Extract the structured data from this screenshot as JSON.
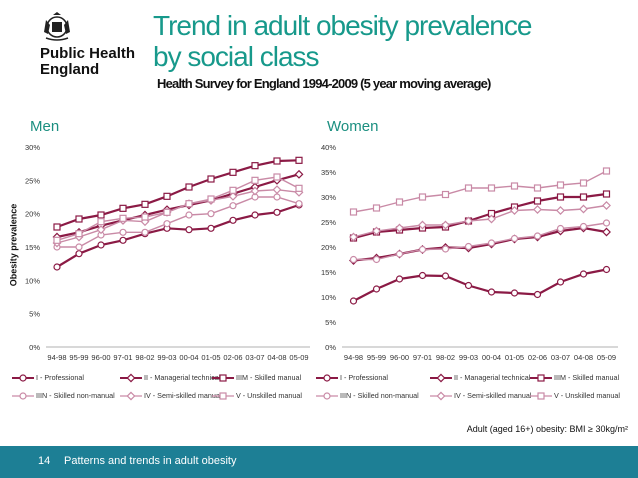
{
  "logo": {
    "line1": "Public Health",
    "line2": "England"
  },
  "title_line1": "Trend in adult obesity prevalence",
  "title_line2": "by social class",
  "subtitle": "Health Survey for England 1994-2009 (5 year moving average)",
  "y_axis_label": "Obesity prevalence",
  "note": "Adult (aged 16+) obesity: BMI ≥ 30kg/m²",
  "footer": {
    "page": "14",
    "text": "Patterns and trends in adult obesity"
  },
  "colors": {
    "dark": "#8b1a45",
    "light": "#c98aa6",
    "teal": "#17998b",
    "footer": "#1d7f95"
  },
  "chart_data": [
    {
      "type": "line",
      "title": "Men",
      "categories": [
        "94-98",
        "95-99",
        "96-00",
        "97-01",
        "98-02",
        "99-03",
        "00-04",
        "01-05",
        "02-06",
        "03-07",
        "04-08",
        "05-09"
      ],
      "ylim": [
        0,
        30
      ],
      "yticks": [
        "0%",
        "5%",
        "10%",
        "15%",
        "20%",
        "25%",
        "30%"
      ],
      "series": [
        {
          "name": "I - Professional",
          "marker": "circle",
          "tone": "dark",
          "values": [
            12.0,
            14.0,
            15.3,
            16.0,
            17.0,
            17.8,
            17.6,
            17.8,
            19.0,
            19.8,
            20.2,
            21.3
          ]
        },
        {
          "name": "II - Managerial technical",
          "marker": "diamond",
          "tone": "dark",
          "values": [
            16.5,
            17.2,
            18.2,
            19.0,
            19.8,
            20.6,
            21.3,
            22.0,
            23.0,
            24.0,
            25.0,
            25.9
          ]
        },
        {
          "name": "IIIM - Skilled manual",
          "marker": "square",
          "tone": "dark",
          "values": [
            18.0,
            19.2,
            19.8,
            20.8,
            21.4,
            22.6,
            24.0,
            25.2,
            26.2,
            27.2,
            27.9,
            28.0
          ]
        },
        {
          "name": "IIIN - Skilled non-manual",
          "marker": "circle",
          "tone": "light",
          "values": [
            15.0,
            15.0,
            16.8,
            17.2,
            17.2,
            18.5,
            19.8,
            20.0,
            21.2,
            22.5,
            22.5,
            21.5
          ]
        },
        {
          "name": "IV - Semi-skilled manual",
          "marker": "diamond",
          "tone": "light",
          "values": [
            15.6,
            16.5,
            17.6,
            19.0,
            18.8,
            20.2,
            21.5,
            22.0,
            22.6,
            23.4,
            23.6,
            23.2
          ]
        },
        {
          "name": "V - Unskilled manual",
          "marker": "square",
          "tone": "light",
          "values": [
            16.0,
            17.0,
            18.8,
            19.3,
            19.5,
            20.2,
            21.5,
            22.2,
            23.5,
            25.0,
            25.5,
            23.8
          ]
        }
      ]
    },
    {
      "type": "line",
      "title": "Women",
      "categories": [
        "94-98",
        "95-99",
        "96-00",
        "97-01",
        "98-02",
        "99-03",
        "00-04",
        "01-05",
        "02-06",
        "03-07",
        "04-08",
        "05-09"
      ],
      "ylim": [
        0,
        40
      ],
      "yticks": [
        "0%",
        "5%",
        "10%",
        "15%",
        "20%",
        "25%",
        "30%",
        "35%",
        "40%"
      ],
      "series": [
        {
          "name": "I - Professional",
          "marker": "circle",
          "tone": "dark",
          "values": [
            9.2,
            11.6,
            13.6,
            14.3,
            14.2,
            12.3,
            11.0,
            10.8,
            10.5,
            13.0,
            14.6,
            15.5
          ]
        },
        {
          "name": "II - Managerial technical",
          "marker": "diamond",
          "tone": "dark",
          "values": [
            17.3,
            17.8,
            18.6,
            19.5,
            19.9,
            19.8,
            20.6,
            21.6,
            22.0,
            23.2,
            23.8,
            23.0
          ]
        },
        {
          "name": "IIIM - Skilled manual",
          "marker": "square",
          "tone": "dark",
          "values": [
            21.8,
            23.0,
            23.4,
            23.8,
            24.0,
            25.2,
            26.7,
            28.0,
            29.2,
            30.0,
            30.0,
            30.6
          ]
        },
        {
          "name": "IIIN - Skilled non-manual",
          "marker": "circle",
          "tone": "light",
          "values": [
            17.5,
            17.5,
            18.6,
            19.5,
            19.6,
            20.1,
            20.8,
            21.7,
            22.2,
            23.7,
            24.1,
            24.8
          ]
        },
        {
          "name": "IV - Semi-skilled manual",
          "marker": "diamond",
          "tone": "light",
          "values": [
            22.0,
            23.2,
            23.8,
            24.4,
            24.4,
            25.2,
            25.6,
            27.3,
            27.5,
            27.3,
            27.6,
            28.3
          ]
        },
        {
          "name": "V - Unskilled manual",
          "marker": "square",
          "tone": "light",
          "values": [
            27.0,
            27.8,
            29.0,
            30.0,
            30.5,
            31.8,
            31.8,
            32.2,
            31.8,
            32.4,
            32.8,
            35.2
          ]
        }
      ]
    }
  ]
}
